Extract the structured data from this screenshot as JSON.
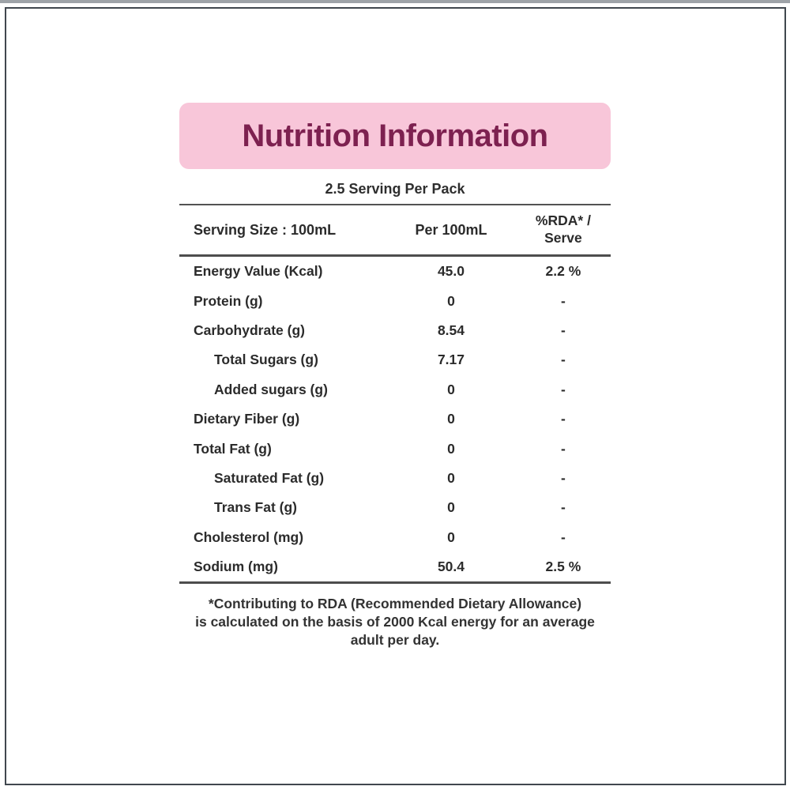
{
  "header": {
    "title": "Nutrition Information",
    "servings_line": "2.5 Serving Per Pack"
  },
  "table": {
    "columns": {
      "serving_size": "Serving Size : 100mL",
      "per_100ml": "Per 100mL",
      "rda_line1": "%RDA* /",
      "rda_line2": "Serve"
    },
    "rows": [
      {
        "label": "Energy Value (Kcal)",
        "indent": false,
        "per_100ml": "45.0",
        "rda": "2.2 %"
      },
      {
        "label": "Protein (g)",
        "indent": false,
        "per_100ml": "0",
        "rda": "-"
      },
      {
        "label": "Carbohydrate (g)",
        "indent": false,
        "per_100ml": "8.54",
        "rda": "-"
      },
      {
        "label": "Total Sugars (g)",
        "indent": true,
        "per_100ml": "7.17",
        "rda": "-"
      },
      {
        "label": "Added sugars (g)",
        "indent": true,
        "per_100ml": "0",
        "rda": "-"
      },
      {
        "label": "Dietary Fiber (g)",
        "indent": false,
        "per_100ml": "0",
        "rda": "-"
      },
      {
        "label": "Total Fat (g)",
        "indent": false,
        "per_100ml": "0",
        "rda": "-"
      },
      {
        "label": "Saturated Fat (g)",
        "indent": true,
        "per_100ml": "0",
        "rda": "-"
      },
      {
        "label": "Trans Fat (g)",
        "indent": true,
        "per_100ml": "0",
        "rda": "-"
      },
      {
        "label": "Cholesterol (mg)",
        "indent": false,
        "per_100ml": "0",
        "rda": "-"
      },
      {
        "label": "Sodium (mg)",
        "indent": false,
        "per_100ml": "50.4",
        "rda": "2.5 %"
      }
    ]
  },
  "footer": {
    "lines": [
      "*Contributing to RDA (Recommended Dietary Allowance)",
      "is calculated on the basis of 2000 Kcal energy for an average",
      "adult per day."
    ]
  },
  "colors": {
    "banner_pink": "#f8c6d9",
    "title_maroon": "#7d2150",
    "body_text": "#2b2b2b",
    "rule_gray": "#4d4d4d",
    "border_slate": "#40474e",
    "top_strip_gray": "#9ea3a8"
  }
}
